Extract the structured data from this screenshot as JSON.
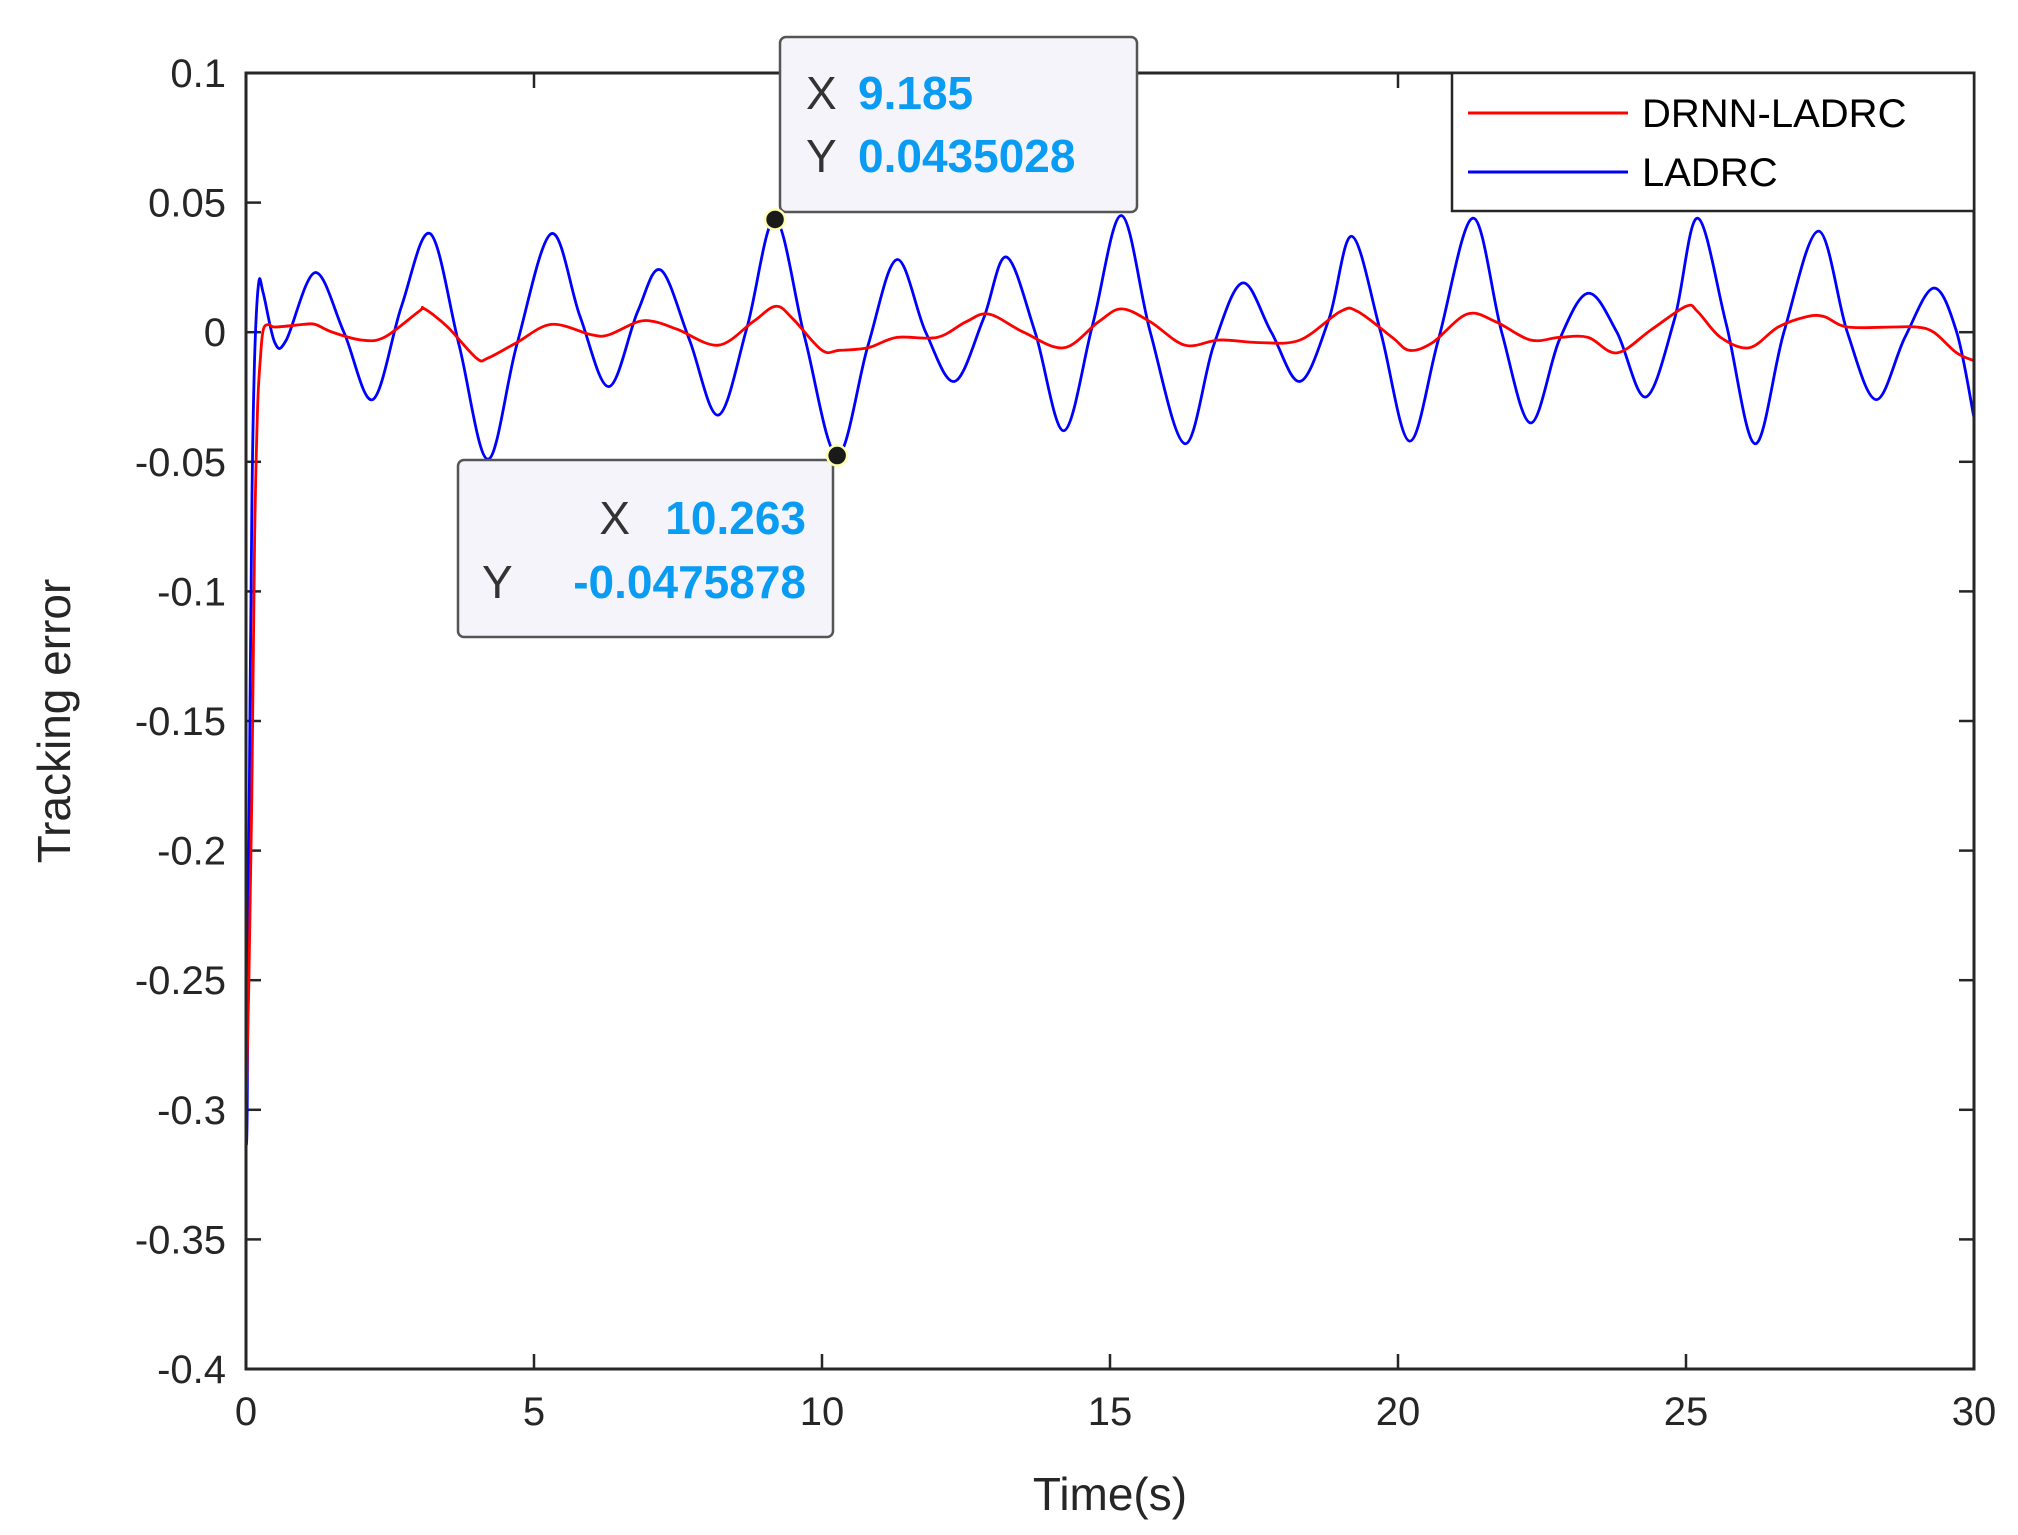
{
  "chart_data": {
    "type": "line",
    "xlabel": "Time(s)",
    "ylabel": "Tracking error",
    "xlim": [
      0,
      30
    ],
    "ylim": [
      -0.4,
      0.1
    ],
    "xticks": [
      0,
      5,
      10,
      15,
      20,
      25,
      30
    ],
    "xtick_labels": [
      "0",
      "5",
      "10",
      "15",
      "20",
      "25",
      "30"
    ],
    "yticks": [
      0.1,
      0.05,
      0,
      -0.05,
      -0.1,
      -0.15,
      -0.2,
      -0.25,
      -0.3,
      -0.35,
      -0.4
    ],
    "ytick_labels": [
      "0.1",
      "0.05",
      "0",
      "-0.05",
      "-0.1",
      "-0.15",
      "-0.2",
      "-0.25",
      "-0.3",
      "-0.35",
      "-0.4"
    ],
    "grid": false,
    "legend_position": "top-right",
    "series": [
      {
        "name": "DRNN-LADRC",
        "color": "#ff0000",
        "x": [
          0,
          0.05,
          0.1,
          0.15,
          0.2,
          0.25,
          0.3,
          0.4,
          0.5,
          1.0,
          1.2,
          1.5,
          2.0,
          2.4,
          3.0,
          3.1,
          3.5,
          4.0,
          4.2,
          4.7,
          5.3,
          6.0,
          6.3,
          6.8,
          7.1,
          7.5,
          8.2,
          8.8,
          9.2,
          9.5,
          10.0,
          10.3,
          10.8,
          11.3,
          12.0,
          12.5,
          12.9,
          13.5,
          14.2,
          14.8,
          15.2,
          15.7,
          16.3,
          16.9,
          17.6,
          18.3,
          19.0,
          19.3,
          19.9,
          20.2,
          20.6,
          21.2,
          21.7,
          22.3,
          22.8,
          23.3,
          23.8,
          24.4,
          25.0,
          25.2,
          25.6,
          26.1,
          26.6,
          27.1,
          27.4,
          27.8,
          28.6,
          29.0,
          29.3,
          29.7,
          30.0
        ],
        "y": [
          -0.3,
          -0.25,
          -0.18,
          -0.08,
          -0.03,
          -0.01,
          0.001,
          0.003,
          0.002,
          0.003,
          0.003,
          0.0,
          -0.003,
          -0.002,
          0.008,
          0.009,
          0.002,
          -0.01,
          -0.01,
          -0.004,
          0.003,
          -0.001,
          -0.001,
          0.004,
          0.004,
          0.001,
          -0.005,
          0.004,
          0.01,
          0.005,
          -0.007,
          -0.007,
          -0.006,
          -0.002,
          -0.002,
          0.004,
          0.007,
          0.0,
          -0.006,
          0.004,
          0.009,
          0.004,
          -0.005,
          -0.003,
          -0.004,
          -0.003,
          0.008,
          0.008,
          -0.002,
          -0.007,
          -0.004,
          0.007,
          0.004,
          -0.003,
          -0.002,
          -0.002,
          -0.008,
          0.001,
          0.01,
          0.008,
          -0.002,
          -0.006,
          0.002,
          0.006,
          0.006,
          0.002,
          0.002,
          0.002,
          0.0,
          -0.008,
          -0.011
        ]
      },
      {
        "name": "LADRC",
        "color": "#0000ff",
        "x": [
          0,
          0.02,
          0.05,
          0.1,
          0.15,
          0.22,
          0.3,
          0.5,
          0.7,
          1.2,
          1.7,
          2.2,
          2.7,
          3.2,
          3.7,
          4.2,
          4.7,
          5.3,
          5.8,
          6.3,
          6.8,
          7.2,
          7.7,
          8.2,
          8.7,
          9.185,
          9.7,
          10.263,
          10.8,
          11.3,
          11.8,
          12.3,
          12.8,
          13.2,
          13.7,
          14.2,
          14.7,
          15.2,
          15.7,
          16.3,
          16.8,
          17.3,
          17.8,
          18.3,
          18.8,
          19.2,
          19.7,
          20.2,
          20.7,
          21.3,
          21.8,
          22.3,
          22.8,
          23.3,
          23.8,
          24.3,
          24.8,
          25.2,
          25.7,
          26.2,
          26.7,
          27.3,
          27.8,
          28.3,
          28.8,
          29.3,
          29.7,
          30.0
        ],
        "y": [
          -0.314,
          -0.3,
          -0.2,
          -0.07,
          -0.01,
          0.019,
          0.015,
          -0.004,
          -0.003,
          0.023,
          0.0,
          -0.026,
          0.01,
          0.038,
          -0.005,
          -0.049,
          -0.005,
          0.038,
          0.006,
          -0.021,
          0.008,
          0.024,
          -0.003,
          -0.032,
          0.002,
          0.0435028,
          -0.002,
          -0.0475878,
          -0.005,
          0.028,
          0.0,
          -0.019,
          0.005,
          0.029,
          0.0,
          -0.038,
          0.003,
          0.045,
          0.0,
          -0.043,
          -0.005,
          0.019,
          0.0,
          -0.019,
          0.005,
          0.037,
          0.0,
          -0.042,
          -0.003,
          0.044,
          0.0,
          -0.035,
          -0.003,
          0.015,
          0.0,
          -0.025,
          0.005,
          0.044,
          0.003,
          -0.043,
          0.0,
          0.039,
          0.0,
          -0.026,
          -0.002,
          0.017,
          0.0,
          -0.033
        ]
      }
    ],
    "datatips": [
      {
        "x": 9.185,
        "y": 0.0435028,
        "x_text": "9.185",
        "y_text": "0.0435028",
        "x_key": "X",
        "y_key": "Y"
      },
      {
        "x": 10.263,
        "y": -0.0475878,
        "x_text": "10.263",
        "y_text": "-0.0475878",
        "x_key": "X",
        "y_key": "Y"
      }
    ]
  }
}
